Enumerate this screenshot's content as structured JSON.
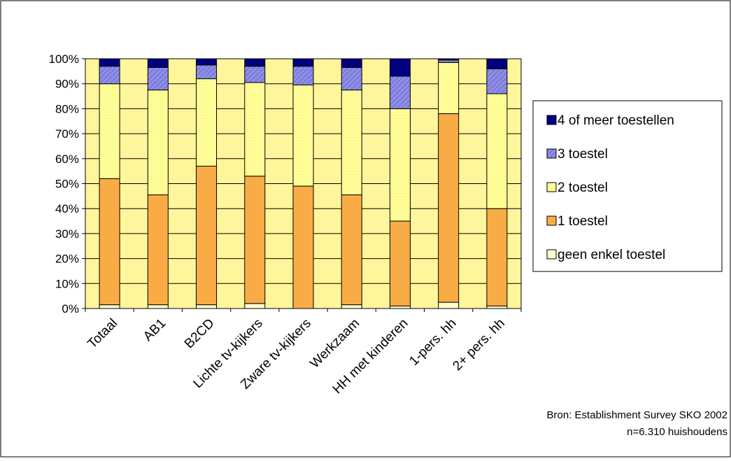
{
  "chart_data": {
    "type": "bar",
    "stacked": "percent",
    "categories": [
      "Totaal",
      "AB1",
      "B2CD",
      "Lichte tv-kijkers",
      "Zware tv-kijkers",
      "Werkzaam",
      "HH met kinderen",
      "1-pers. hh",
      "2+ pers. hh"
    ],
    "series": [
      {
        "name": "geen enkel toestel",
        "color": "#FFFFCC",
        "values": [
          1.5,
          1.5,
          1.5,
          2,
          0,
          1.5,
          1,
          2.5,
          1
        ]
      },
      {
        "name": "1 toestel",
        "color": "#F9AC45",
        "values": [
          50.5,
          44,
          55.5,
          51,
          49,
          44,
          34,
          75.5,
          39
        ]
      },
      {
        "name": "2 toestel",
        "color": "#FFFF99",
        "values": [
          38,
          42,
          35,
          37.5,
          40.5,
          42,
          45,
          20.5,
          46
        ]
      },
      {
        "name": "3 toestel",
        "color": "#8E8EE6",
        "values": [
          7,
          9,
          5.5,
          6.5,
          7.5,
          9,
          13,
          1,
          10
        ]
      },
      {
        "name": "4 of meer toestellen",
        "color": "#000080",
        "values": [
          3,
          3.5,
          2.5,
          3,
          3,
          3.5,
          7,
          0.5,
          4
        ]
      }
    ],
    "y_ticks": [
      "0%",
      "10%",
      "20%",
      "30%",
      "40%",
      "50%",
      "60%",
      "70%",
      "80%",
      "90%",
      "100%"
    ],
    "ylim": [
      0,
      100
    ],
    "grid": true,
    "legend_position": "right",
    "plot_background": "#FFF59A"
  },
  "source_note": {
    "line1": "Bron: Establishment Survey SKO 2002",
    "line2": "n=6.310 huishoudens"
  }
}
